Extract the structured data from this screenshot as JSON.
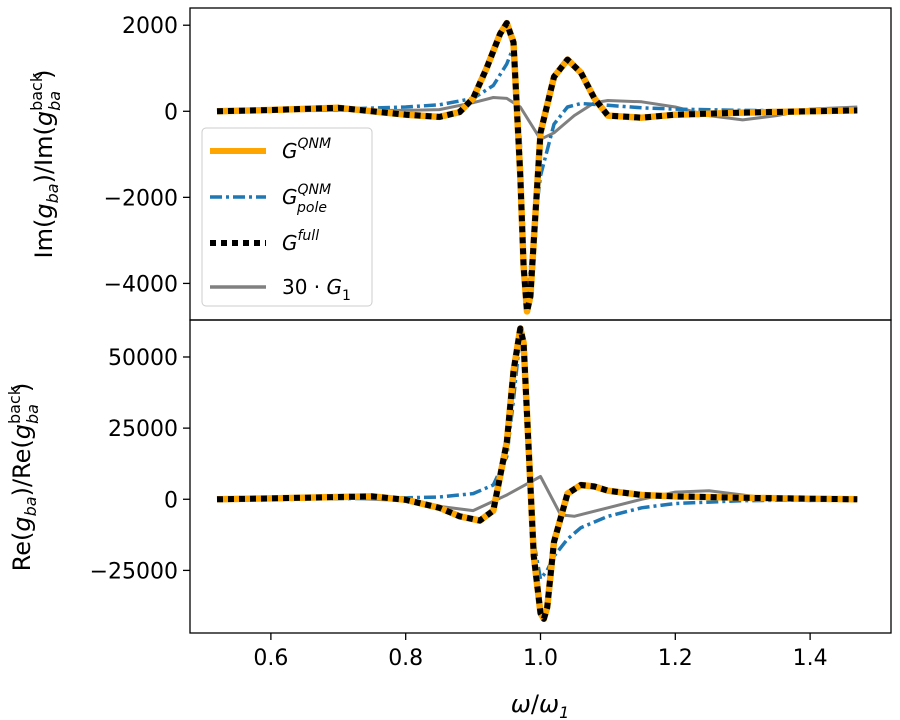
{
  "chart_data": [
    {
      "type": "line",
      "panel": "top",
      "ylabel": "Im(g_ba)/Im(g_ba^back)",
      "xlim": [
        0.48,
        1.52
      ],
      "ylim": [
        -4850,
        2400
      ],
      "yticks": [
        2000,
        0,
        -2000,
        -4000
      ],
      "ytick_labels": [
        "2000",
        "0",
        "−2000",
        "−4000"
      ],
      "legend_position": "lower left",
      "series": [
        {
          "name": "G^QNM",
          "style": "solid",
          "color": "#FFA500",
          "x": [
            0.52,
            0.6,
            0.7,
            0.8,
            0.85,
            0.88,
            0.9,
            0.92,
            0.94,
            0.95,
            0.96,
            0.97,
            0.975,
            0.98,
            0.985,
            0.99,
            1.0,
            1.02,
            1.04,
            1.06,
            1.08,
            1.1,
            1.15,
            1.2,
            1.3,
            1.4,
            1.47
          ],
          "y": [
            0,
            30,
            80,
            -80,
            -130,
            -20,
            300,
            1000,
            1800,
            2050,
            1600,
            -1500,
            -3600,
            -4650,
            -4300,
            -3000,
            -500,
            800,
            1200,
            900,
            300,
            -100,
            -150,
            -80,
            -30,
            0,
            20
          ]
        },
        {
          "name": "G_pole^QNM",
          "style": "dashdot",
          "color": "#1F77B4",
          "x": [
            0.52,
            0.6,
            0.7,
            0.8,
            0.85,
            0.9,
            0.93,
            0.95,
            0.96,
            0.97,
            0.975,
            0.98,
            0.99,
            1.0,
            1.02,
            1.04,
            1.06,
            1.1,
            1.15,
            1.2,
            1.3,
            1.4,
            1.47
          ],
          "y": [
            0,
            20,
            50,
            100,
            150,
            300,
            600,
            1100,
            1500,
            -700,
            -3000,
            -4500,
            -2800,
            -1500,
            -300,
            100,
            180,
            140,
            80,
            50,
            20,
            10,
            0
          ]
        },
        {
          "name": "G^full",
          "style": "dotted",
          "color": "#000000",
          "x": [
            0.52,
            0.6,
            0.7,
            0.8,
            0.85,
            0.88,
            0.9,
            0.92,
            0.94,
            0.95,
            0.96,
            0.97,
            0.975,
            0.98,
            0.985,
            0.99,
            1.0,
            1.02,
            1.04,
            1.06,
            1.08,
            1.1,
            1.15,
            1.2,
            1.3,
            1.4,
            1.47
          ],
          "y": [
            0,
            30,
            80,
            -80,
            -130,
            -20,
            300,
            1000,
            1800,
            2050,
            1600,
            -1500,
            -3600,
            -4650,
            -4300,
            -3000,
            -500,
            800,
            1200,
            900,
            300,
            -100,
            -150,
            -80,
            -30,
            0,
            20
          ]
        },
        {
          "name": "30·G_1",
          "style": "solid",
          "color": "#808080",
          "x": [
            0.52,
            0.7,
            0.8,
            0.85,
            0.9,
            0.93,
            0.95,
            0.97,
            1.0,
            1.02,
            1.05,
            1.08,
            1.1,
            1.15,
            1.2,
            1.25,
            1.3,
            1.35,
            1.4,
            1.47
          ],
          "y": [
            0,
            20,
            20,
            40,
            200,
            320,
            300,
            100,
            -650,
            -500,
            -100,
            200,
            250,
            220,
            100,
            -100,
            -200,
            -100,
            50,
            100
          ]
        }
      ]
    },
    {
      "type": "line",
      "panel": "bottom",
      "ylabel": "Re(g_ba)/Re(g_ba^back)",
      "xlabel": "ω/ω_1",
      "xlim": [
        0.48,
        1.52
      ],
      "ylim": [
        -47000,
        63000
      ],
      "yticks": [
        50000,
        25000,
        0,
        -25000
      ],
      "ytick_labels": [
        "50000",
        "25000",
        "0",
        "−25000"
      ],
      "xticks": [
        0.6,
        0.8,
        1.0,
        1.2,
        1.4
      ],
      "xtick_labels": [
        "0.6",
        "0.8",
        "1.0",
        "1.2",
        "1.4"
      ],
      "series": [
        {
          "name": "G^QNM",
          "style": "solid",
          "color": "#FFA500",
          "x": [
            0.52,
            0.6,
            0.7,
            0.75,
            0.8,
            0.85,
            0.88,
            0.91,
            0.93,
            0.95,
            0.96,
            0.97,
            0.975,
            0.98,
            0.99,
            1.0,
            1.005,
            1.01,
            1.02,
            1.04,
            1.06,
            1.08,
            1.1,
            1.15,
            1.2,
            1.3,
            1.4,
            1.47
          ],
          "y": [
            0,
            300,
            800,
            1000,
            -200,
            -3000,
            -6000,
            -7500,
            -4000,
            20000,
            45000,
            60000,
            55000,
            30000,
            -20000,
            -40000,
            -42000,
            -38000,
            -15000,
            2000,
            5000,
            4500,
            3000,
            1500,
            1000,
            500,
            200,
            0
          ]
        },
        {
          "name": "G_pole^QNM",
          "style": "dashdot",
          "color": "#1F77B4",
          "x": [
            0.52,
            0.7,
            0.8,
            0.85,
            0.9,
            0.93,
            0.95,
            0.96,
            0.97,
            0.975,
            0.98,
            0.99,
            1.0,
            1.01,
            1.02,
            1.04,
            1.06,
            1.1,
            1.15,
            1.2,
            1.3,
            1.47
          ],
          "y": [
            0,
            200,
            500,
            800,
            2000,
            5000,
            15000,
            35000,
            58000,
            55000,
            30000,
            -15000,
            -28000,
            -25000,
            -20000,
            -14000,
            -10000,
            -6000,
            -3000,
            -1500,
            -500,
            0
          ]
        },
        {
          "name": "G^full",
          "style": "dotted",
          "color": "#000000",
          "x": [
            0.52,
            0.6,
            0.7,
            0.75,
            0.8,
            0.85,
            0.88,
            0.91,
            0.93,
            0.95,
            0.96,
            0.97,
            0.975,
            0.98,
            0.99,
            1.0,
            1.005,
            1.01,
            1.02,
            1.04,
            1.06,
            1.08,
            1.1,
            1.15,
            1.2,
            1.3,
            1.4,
            1.47
          ],
          "y": [
            0,
            300,
            800,
            1000,
            -200,
            -3000,
            -6000,
            -7500,
            -4000,
            20000,
            45000,
            60000,
            55000,
            30000,
            -20000,
            -40000,
            -42000,
            -38000,
            -15000,
            2000,
            5000,
            4500,
            3000,
            1500,
            1000,
            500,
            200,
            0
          ]
        },
        {
          "name": "30·G_1",
          "style": "solid",
          "color": "#808080",
          "x": [
            0.52,
            0.7,
            0.8,
            0.85,
            0.9,
            0.95,
            1.0,
            1.03,
            1.05,
            1.1,
            1.15,
            1.2,
            1.25,
            1.3,
            1.35,
            1.4,
            1.47
          ],
          "y": [
            0,
            500,
            -500,
            -2500,
            -4000,
            1500,
            8000,
            -5500,
            -6000,
            -3000,
            0,
            2500,
            3000,
            1500,
            0,
            -500,
            0
          ]
        }
      ]
    }
  ],
  "legend": {
    "entries": [
      {
        "base": "G",
        "sup": "QNM",
        "sub": "",
        "prefix": ""
      },
      {
        "base": "G",
        "sup": "QNM",
        "sub": "pole",
        "prefix": ""
      },
      {
        "base": "G",
        "sup": "full",
        "sub": "",
        "prefix": ""
      },
      {
        "base": "G",
        "sup": "",
        "sub": "1",
        "prefix": "30 · "
      }
    ]
  },
  "labels": {
    "top_ylabel": {
      "head": "Im(",
      "var": "g",
      "sub": "ba",
      "mid": ")/Im(",
      "sup": "back",
      "tail": ")"
    },
    "bottom_ylabel": {
      "head": "Re(",
      "var": "g",
      "sub": "ba",
      "mid": ")/Re(",
      "sup": "back",
      "tail": ")"
    },
    "xlabel": {
      "num": "ω",
      "slash": "/",
      "den": "ω",
      "sub": "1"
    }
  }
}
